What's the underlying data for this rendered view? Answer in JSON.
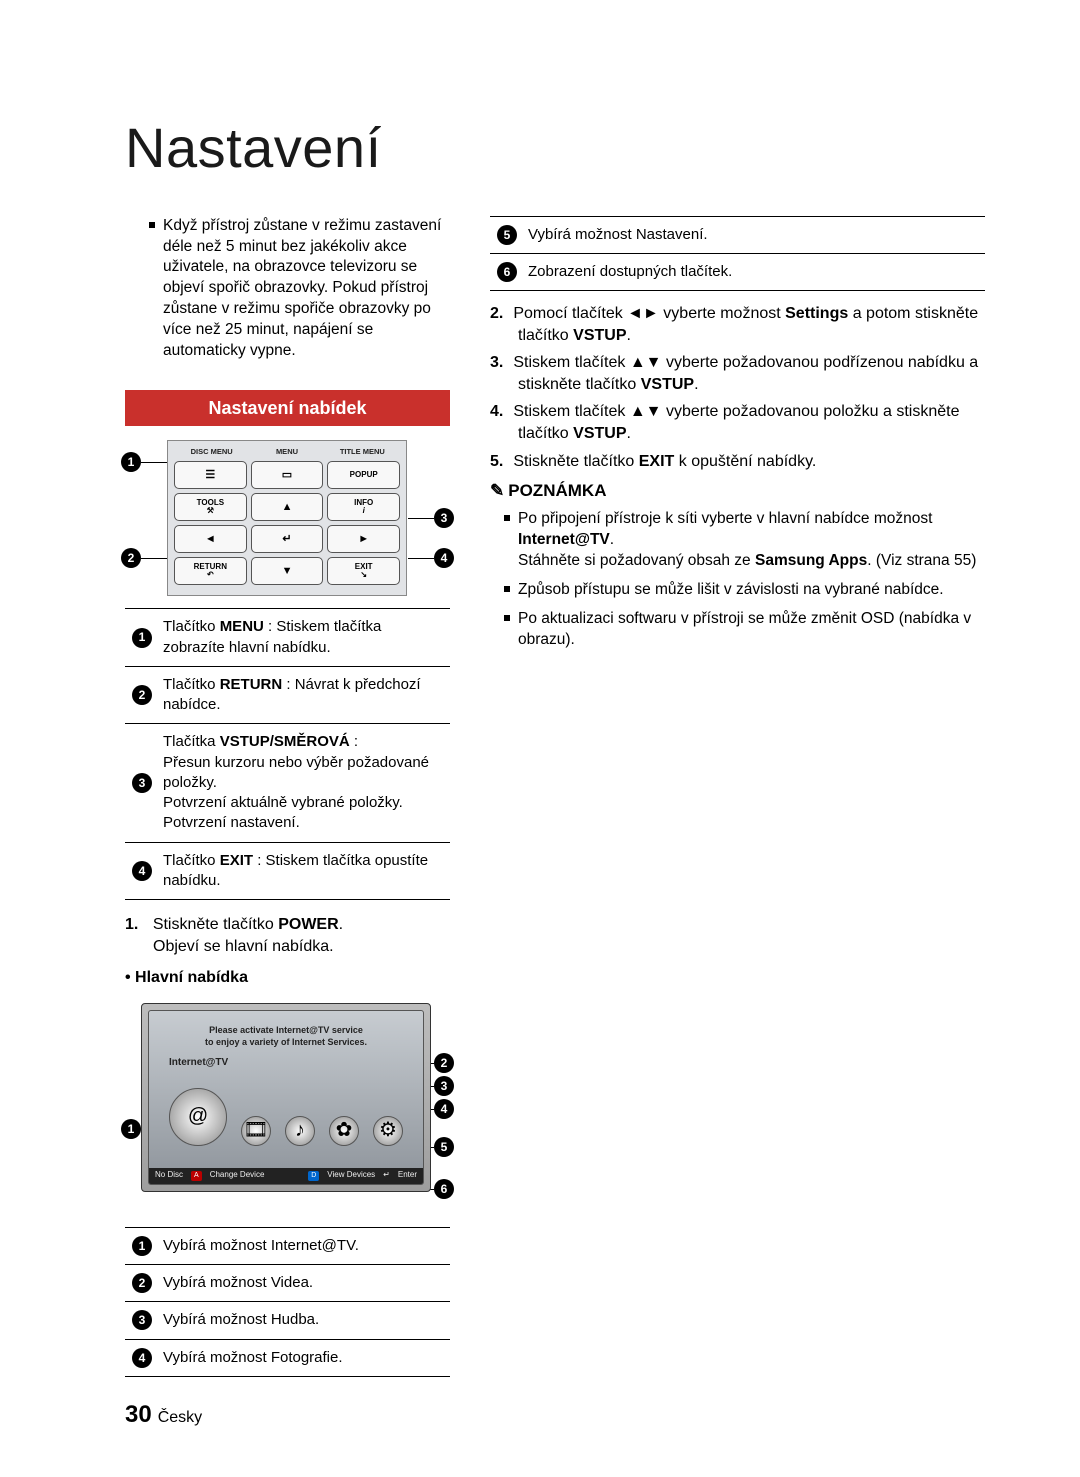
{
  "title": "Nastavení",
  "intro": "Když přístroj zůstane v režimu zastavení déle než 5 minut bez jakékoliv akce uživatele, na obrazovce televizoru se objeví spořič obrazovky. Pokud přístroj zůstane v režimu spořiče obrazovky po více než 25 minut, napájení se automaticky vypne.",
  "section_heading": "Nastavení nabídek",
  "remote": {
    "top_labels": [
      "DISC MENU",
      "MENU",
      "TITLE MENU"
    ],
    "row1": [
      "☰",
      "▭",
      "POPUP"
    ],
    "row2_left": "TOOLS",
    "row2_right": "INFO",
    "row3_left": "RETURN",
    "row3_right": "EXIT",
    "arrows": {
      "up": "▲",
      "down": "▼",
      "left": "◄",
      "right": "►",
      "enter": "↵"
    }
  },
  "remote_table": [
    {
      "n": "1",
      "html": "Tlačítko <b>MENU</b> : Stiskem tlačítka zobrazíte hlavní nabídku."
    },
    {
      "n": "2",
      "html": "Tlačítko <b>RETURN</b> : Návrat k předchozí nabídce."
    },
    {
      "n": "3",
      "html": "Tlačítka <b>VSTUP/SMĚROVÁ</b> :<br>Přesun kurzoru nebo výběr požadované položky.<br>Potvrzení aktuálně vybrané položky.<br>Potvrzení nastavení."
    },
    {
      "n": "4",
      "html": "Tlačítko <b>EXIT</b> : Stiskem tlačítka opustíte nabídku."
    }
  ],
  "step1_a": "Stiskněte tlačítko ",
  "step1_b": "POWER",
  "step1_c": ".",
  "step1_line2": "Objeví se hlavní nabídka.",
  "main_menu_label": "• Hlavní nabídka",
  "tv": {
    "msg1": "Please activate Internet@TV service",
    "msg2": "to enjoy a variety of Internet Services.",
    "brand": "Internet@TV",
    "footer": {
      "no_disc": "No Disc",
      "a": "A",
      "change": "Change Device",
      "d": "D",
      "view": "View Devices",
      "enter_icon": "↵",
      "enter": "Enter"
    }
  },
  "tv_table": [
    {
      "n": "1",
      "text": "Vybírá možnost Internet@TV."
    },
    {
      "n": "2",
      "text": "Vybírá možnost Videa."
    },
    {
      "n": "3",
      "text": "Vybírá možnost Hudba."
    },
    {
      "n": "4",
      "text": "Vybírá možnost Fotografie."
    }
  ],
  "right_top_table": [
    {
      "n": "5",
      "text": "Vybírá možnost Nastavení."
    },
    {
      "n": "6",
      "text": "Zobrazení dostupných tlačítek."
    }
  ],
  "right_steps": [
    {
      "n": "2",
      "html": "Pomocí tlačítek ◄► vyberte možnost <b>Settings</b> a potom stiskněte tlačítko <b>VSTUP</b>."
    },
    {
      "n": "3",
      "html": "Stiskem tlačítek ▲▼ vyberte požadovanou podřízenou nabídku a stiskněte tlačítko <b>VSTUP</b>."
    },
    {
      "n": "4",
      "html": "Stiskem tlačítek ▲▼ vyberte požadovanou položku a stiskněte tlačítko <b>VSTUP</b>."
    },
    {
      "n": "5",
      "html": "Stiskněte tlačítko <b>EXIT</b> k opuštění nabídky."
    }
  ],
  "note_label": "POZNÁMKA",
  "notes": [
    "Po připojení přístroje k síti vyberte v hlavní nabídce možnost <b>Internet@TV</b>.<br>Stáhněte si požadovaný obsah ze <b>Samsung Apps</b>. (Viz strana 55)",
    "Způsob přístupu se může lišit v závislosti na vybrané nabídce.",
    "Po aktualizaci softwaru v přístroji se může změnit OSD (nabídka v obrazu)."
  ],
  "page_num": "30",
  "lang": "Česky",
  "colors": {
    "section_bg": "#c9302c",
    "section_fg": "#ffffff",
    "text": "#000000",
    "bg": "#ffffff"
  }
}
